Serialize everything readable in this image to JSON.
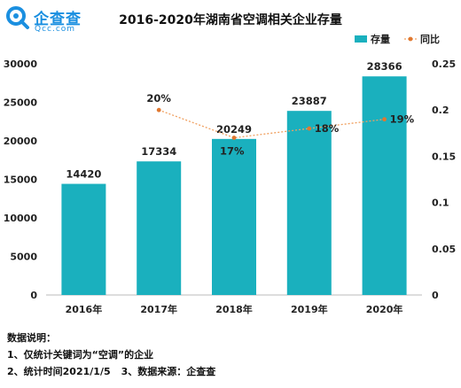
{
  "logo": {
    "name_cn": "企查查",
    "name_en": "Qcc.com"
  },
  "chart_data": {
    "type": "bar",
    "title": "2016-2020年湖南省空调相关企业存量",
    "categories": [
      "2016年",
      "2017年",
      "2018年",
      "2019年",
      "2020年"
    ],
    "series": [
      {
        "name": "存量",
        "type": "bar",
        "axis": "left",
        "values": [
          14420,
          17334,
          20249,
          23887,
          28366
        ]
      },
      {
        "name": "同比",
        "type": "line",
        "axis": "right",
        "values": [
          null,
          0.2,
          0.17,
          0.18,
          0.19
        ],
        "labels": [
          "",
          "20%",
          "17%",
          "18%",
          "19%"
        ]
      }
    ],
    "ylim_left": [
      0,
      30000
    ],
    "ytick_left": [
      "0",
      "5000",
      "10000",
      "15000",
      "20000",
      "25000",
      "30000"
    ],
    "ylim_right": [
      0,
      0.25
    ],
    "ytick_right": [
      "0",
      "0.05",
      "0.1",
      "0.15",
      "0.2",
      "0.25"
    ],
    "legend_position": "top-right",
    "grid": false,
    "colors": {
      "bar": "#1ab0be",
      "line": "#f0a060",
      "marker": "#e07830"
    }
  },
  "notes": {
    "heading": "数据说明：",
    "line1": "1、仅统计关键词为“空调”的企业",
    "line2a": "2、统计时间2021/1/5",
    "line2b": "3、数据来源：企查查"
  }
}
